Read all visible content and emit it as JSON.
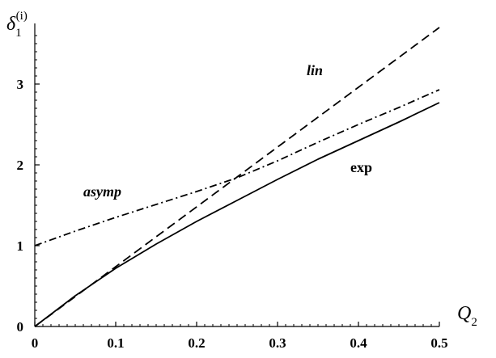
{
  "chart_data": {
    "type": "line",
    "xlabel": "Q",
    "xlabel_sub": "2",
    "ylabel": "δ",
    "ylabel_sub": "1",
    "ylabel_sup": "(i)",
    "xlim": [
      0,
      0.5
    ],
    "ylim": [
      0,
      3.75
    ],
    "xticks": [
      0,
      0.1,
      0.2,
      0.3,
      0.4,
      0.5
    ],
    "xtick_labels": [
      "0",
      "0.1",
      "0.2",
      "0.3",
      "0.4",
      "0.5"
    ],
    "yticks": [
      0,
      1,
      2,
      3
    ],
    "ytick_labels": [
      "0",
      "1",
      "2",
      "3"
    ],
    "grid": false,
    "series": [
      {
        "name": "lin",
        "style": "dashed",
        "color": "#000000",
        "x": [
          0,
          0.1,
          0.2,
          0.3,
          0.4,
          0.5
        ],
        "y": [
          0,
          0.74,
          1.48,
          2.22,
          2.96,
          3.7
        ]
      },
      {
        "name": "asymp",
        "style": "dashdot",
        "color": "#000000",
        "x": [
          0,
          0.05,
          0.1,
          0.15,
          0.2,
          0.25,
          0.3,
          0.35,
          0.4,
          0.45,
          0.5
        ],
        "y": [
          1.0,
          1.18,
          1.35,
          1.51,
          1.67,
          1.84,
          2.05,
          2.28,
          2.5,
          2.71,
          2.93
        ]
      },
      {
        "name": "exp",
        "style": "solid",
        "color": "#000000",
        "x": [
          0,
          0.05,
          0.1,
          0.15,
          0.2,
          0.25,
          0.3,
          0.35,
          0.4,
          0.45,
          0.5
        ],
        "y": [
          0,
          0.38,
          0.72,
          1.02,
          1.3,
          1.56,
          1.82,
          2.07,
          2.3,
          2.53,
          2.77
        ]
      }
    ],
    "annotations": [
      {
        "text": "lin",
        "series": "lin",
        "italic": true,
        "x": 0.336,
        "y": 3.11
      },
      {
        "text": "asymp",
        "series": "asymp",
        "italic": true,
        "x": 0.06,
        "y": 1.61
      },
      {
        "text": "exp",
        "series": "exp",
        "italic": false,
        "x": 0.39,
        "y": 1.91
      }
    ]
  }
}
